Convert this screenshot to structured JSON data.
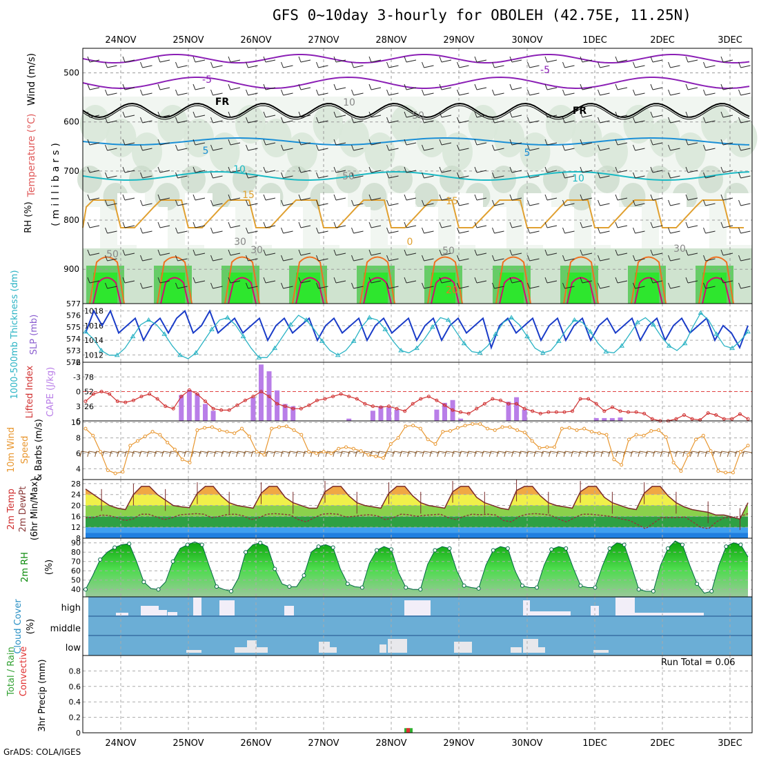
{
  "title": "GFS 0~10day 3-hourly for OBOLEH (42.75E, 11.25N)",
  "credit": "GrADS: COLA/IGES",
  "chart_data": [
    {
      "id": "upper_air",
      "type": "heatmap",
      "ylabel_parts": [
        "Wind (m/s)",
        "Temperature (°C)",
        "RH (%)"
      ],
      "ylabel_units": "(millibars)",
      "yticks": [
        500,
        600,
        700,
        800,
        900
      ],
      "ylim": [
        970,
        450
      ],
      "contour_labels": [
        "-5",
        "-5",
        "FR",
        "FR",
        "5",
        "5",
        "10",
        "10",
        "15",
        "15",
        "10",
        "50",
        "50",
        "50",
        "50",
        "30",
        "30",
        "30",
        "0",
        "20"
      ]
    },
    {
      "id": "slp_thickness",
      "type": "line",
      "ylabel_left": "1000-500mb Thickness (dm)",
      "ylabel_right": "SLP (mb)",
      "yticks_left": [
        572,
        573,
        574,
        575,
        576,
        577
      ],
      "yticks_right": [
        1012,
        1014,
        1016,
        1018
      ],
      "ylim_left": [
        572,
        577
      ],
      "ylim_right": [
        1011,
        1019
      ],
      "series": [
        {
          "axis": "right",
          "color": "#1a3cc8",
          "values": [
            1015,
            1018,
            1016,
            1018,
            1015,
            1016,
            1017,
            1014,
            1016,
            1017,
            1015,
            1017,
            1018,
            1015,
            1016,
            1018,
            1015,
            1016,
            1017,
            1015,
            1016,
            1017,
            1014,
            1016,
            1017,
            1015,
            1016,
            1017,
            1014,
            1016,
            1017,
            1015,
            1016,
            1017,
            1014,
            1016,
            1017,
            1015,
            1016,
            1017,
            1014,
            1016,
            1017,
            1014,
            1016,
            1017,
            1015,
            1016,
            1017,
            1013,
            1016,
            1017,
            1015,
            1016,
            1017,
            1014,
            1016,
            1017,
            1014,
            1016,
            1017,
            1014,
            1016,
            1017,
            1015,
            1016,
            1017,
            1014,
            1016,
            1017,
            1014,
            1016,
            1017,
            1015,
            1016,
            1017,
            1014,
            1016,
            1015,
            1013,
            1016
          ]
        },
        {
          "axis": "left",
          "color": "#2ab3c4",
          "values": [
            574.6,
            574,
            573,
            572.6,
            572.6,
            573.2,
            574.2,
            575.2,
            575.6,
            575.2,
            574.4,
            573.4,
            572.6,
            572.3,
            572.8,
            573.8,
            574.8,
            575.6,
            575.8,
            575.2,
            574.2,
            573.2,
            572.4,
            572.4,
            573.2,
            574.2,
            575.2,
            576,
            575.6,
            574.8,
            573.8,
            573,
            572.6,
            573,
            573.8,
            575,
            575.8,
            575.6,
            574.8,
            573.8,
            573,
            572.8,
            573.2,
            574,
            575,
            575.8,
            575.6,
            574.6,
            573.6,
            572.9,
            572.8,
            573.4,
            574.4,
            575.4,
            575.8,
            575.2,
            574.2,
            573.2,
            572.8,
            573,
            573.8,
            574.8,
            575.6,
            575.4,
            574.6,
            573.6,
            572.9,
            572.8,
            573.4,
            574.4,
            575.4,
            575.8,
            575.2,
            574.2,
            573.4,
            573,
            573.6,
            575,
            576.2,
            575.6,
            574.4,
            573.4,
            573.2,
            573.8,
            574.6
          ]
        }
      ]
    },
    {
      "id": "cape_li",
      "type": "bar",
      "ylabel_left": "Lifted Index",
      "ylabel_right": "CAPE (J/kg)",
      "yticks_left": [
        -6,
        -3,
        0,
        3,
        6
      ],
      "yticks_right": [
        26,
        52,
        78
      ],
      "ylim_left": [
        6,
        -6
      ],
      "ylim_right": [
        0,
        104
      ],
      "cape": [
        0,
        0,
        0,
        0,
        0,
        0,
        0,
        0,
        0,
        0,
        0,
        0,
        46,
        55,
        48,
        30,
        18,
        0,
        0,
        0,
        0,
        42,
        100,
        88,
        54,
        30,
        26,
        0,
        0,
        0,
        0,
        0,
        0,
        4,
        0,
        0,
        18,
        26,
        24,
        20,
        0,
        0,
        0,
        0,
        20,
        32,
        37,
        4,
        0,
        0,
        0,
        0,
        0,
        34,
        42,
        20,
        0,
        0,
        0,
        0,
        0,
        0,
        0,
        0,
        5,
        5,
        5,
        6,
        0,
        0,
        0,
        0,
        0,
        0,
        0,
        0,
        0,
        0,
        0,
        0,
        0,
        0,
        0,
        0
      ],
      "li": [
        2,
        0.5,
        0,
        0.5,
        2,
        2.2,
        1.8,
        1,
        0.5,
        1.5,
        3,
        3.5,
        1,
        -0.3,
        0.5,
        2,
        3.5,
        3.8,
        3.8,
        2.8,
        1.8,
        1,
        0,
        1,
        2.5,
        3,
        3.5,
        3.5,
        2.8,
        1.8,
        1.5,
        1,
        0.5,
        1,
        1.5,
        2.5,
        3,
        3.2,
        3,
        3.5,
        4,
        2.5,
        1.5,
        1,
        1.8,
        2.8,
        3.8,
        4.2,
        4.5,
        3.5,
        2.5,
        1.5,
        1.8,
        2.5,
        2.5,
        3.5,
        4,
        4.5,
        4.2,
        4.2,
        4.2,
        4,
        1.5,
        1.5,
        2.5,
        4,
        3.2,
        4,
        4.2,
        4.2,
        4.5,
        5.6,
        6,
        6,
        5.6,
        4.8,
        5.6,
        5.8,
        4.4,
        4.8,
        5.6,
        5.6,
        4.6,
        5.6
      ]
    },
    {
      "id": "wind10m",
      "type": "line",
      "ylabel": "10m Wind Speed & Barbs (m/s)",
      "yticks": [
        4,
        6,
        8,
        10
      ],
      "ylim": [
        2.6,
        10.2
      ],
      "values": [
        9.2,
        8.3,
        6.2,
        3.8,
        3.4,
        3.6,
        7,
        7.6,
        8.2,
        8.8,
        8.4,
        7.4,
        6.5,
        5.2,
        4.8,
        9,
        9.3,
        9.4,
        9,
        8.8,
        8.6,
        9.2,
        8.2,
        6.2,
        5.8,
        9.2,
        9.4,
        9.5,
        9,
        8.4,
        6.2,
        6,
        6.2,
        6,
        6.6,
        6.8,
        6.6,
        6.3,
        5.8,
        5.6,
        5.4,
        7.2,
        8,
        9.5,
        9.6,
        9.2,
        7.8,
        7.2,
        8.8,
        8.9,
        9.3,
        9.6,
        9.8,
        9.8,
        9.2,
        9,
        9.4,
        9.4,
        9,
        8.7,
        7.6,
        6.7,
        6.8,
        6.8,
        9.2,
        9.3,
        9,
        9.2,
        8.8,
        8.6,
        8.4,
        5.2,
        4.5,
        7.8,
        8.4,
        8.3,
        8.9,
        9,
        8.1,
        4.8,
        3.7,
        5.8,
        7.8,
        8.3,
        6.3,
        3.7,
        3.5,
        3.5,
        6.2,
        7
      ]
    },
    {
      "id": "temp2m",
      "type": "area",
      "ylabel": "2m Temp 2m DewPt (6hr Min/Max) (°C)",
      "yticks": [
        8,
        12,
        16,
        20,
        24,
        28
      ],
      "ylim": [
        8,
        29.5
      ],
      "temp": [
        26,
        24,
        22,
        20,
        19,
        18.5,
        24,
        27,
        27,
        24,
        22,
        20,
        19.5,
        19.2,
        24.5,
        27,
        27,
        23.5,
        21,
        20,
        19.5,
        19,
        24.5,
        27,
        27,
        23,
        21,
        20,
        19,
        19,
        25,
        27,
        27,
        23.5,
        21,
        20,
        19.5,
        19,
        24.5,
        27,
        27,
        23.5,
        21,
        20,
        19.5,
        19,
        25,
        27,
        27,
        23,
        21,
        20,
        19,
        18.5,
        25.5,
        27,
        27,
        23.5,
        21,
        20,
        19.5,
        19,
        25,
        27,
        27,
        23,
        21,
        20,
        19,
        18.5,
        24.5,
        27,
        27,
        23.5,
        21,
        19.5,
        18.5,
        18,
        17.5,
        16.5,
        16.5,
        15.8,
        15,
        21
      ],
      "dewpt": [
        15.5,
        15.5,
        16.5,
        16.3,
        15.5,
        14.5,
        15,
        16.8,
        16.8,
        15.8,
        14.8,
        15.5,
        16.6,
        16.8,
        17,
        16.8,
        15.5,
        16,
        16.7,
        16.8,
        16.2,
        14.8,
        15.5,
        16.8,
        17,
        16.8,
        16.5,
        14.8,
        14,
        15.5,
        16.8,
        17,
        16.8,
        15.8,
        16,
        16.4,
        16.6,
        16.2,
        14.8,
        15.5,
        16.8,
        16.6,
        16,
        16.4,
        16.6,
        16.8,
        15.5,
        14.8,
        16,
        16.8,
        16.6,
        16.8,
        16.5,
        14.5,
        14,
        16,
        16.8,
        17,
        16.8,
        16.4,
        15,
        14,
        15.5,
        16.8,
        16.8,
        16.5,
        16.2,
        15.8,
        15,
        14.5,
        13,
        11.5,
        13.5,
        15.5,
        15.5,
        15.5,
        15.8,
        14,
        12,
        11.5,
        14,
        15.5,
        15.5,
        16,
        17
      ],
      "fill_bands": [
        {
          "range": [
            8,
            10
          ],
          "color": "#1f7fe0"
        },
        {
          "range": [
            10,
            12
          ],
          "color": "#3fa0f0"
        },
        {
          "range": [
            12,
            16
          ],
          "color": "#2ea043"
        },
        {
          "range": [
            16,
            20
          ],
          "color": "#8ad14c"
        },
        {
          "range": [
            20,
            24
          ],
          "color": "#f0f04a"
        },
        {
          "range": [
            24,
            28
          ],
          "color": "#f0a844"
        },
        {
          "range": [
            28,
            32
          ],
          "color": "#e87830"
        }
      ]
    },
    {
      "id": "rh2m",
      "type": "area",
      "ylabel": "2m RH (%)",
      "yticks": [
        40,
        50,
        60,
        70,
        80,
        90
      ],
      "ylim": [
        32,
        95
      ],
      "values": [
        40,
        55,
        72,
        80,
        85,
        88,
        89,
        70,
        48,
        41,
        40,
        48,
        70,
        84,
        88,
        91,
        88,
        65,
        43,
        40,
        38,
        52,
        80,
        88,
        90,
        86,
        62,
        46,
        43,
        43,
        55,
        80,
        86,
        88,
        85,
        62,
        46,
        43,
        42,
        68,
        82,
        86,
        83,
        58,
        42,
        40,
        40,
        67,
        82,
        86,
        84,
        60,
        44,
        42,
        41,
        66,
        82,
        86,
        84,
        60,
        44,
        42,
        42,
        66,
        83,
        86,
        84,
        63,
        44,
        42,
        42,
        65,
        84,
        90,
        88,
        65,
        40,
        38,
        38,
        66,
        84,
        92,
        88,
        66,
        46,
        36,
        38,
        66,
        86,
        90,
        88,
        75
      ]
    },
    {
      "id": "cloud",
      "type": "bar",
      "ylabel": "Cloud Cover (%)",
      "categories": [
        "high",
        "middle",
        "low"
      ],
      "background_color": "#6baed6"
    },
    {
      "id": "precip",
      "type": "bar",
      "ylabel_parts": [
        "Total / Rain",
        "Convective"
      ],
      "ylabel": "3hr Precip (mm)",
      "yticks": [
        0,
        0.2,
        0.4,
        0.6,
        0.8
      ],
      "ylim": [
        0,
        1
      ],
      "run_total": "Run Total = 0.06",
      "bars": [
        {
          "index": 29,
          "total": 0.06,
          "convective": 0.06
        }
      ]
    }
  ],
  "x_axis": {
    "labels": [
      "24NOV",
      "25NOV",
      "26NOV",
      "27NOV",
      "28NOV",
      "29NOV",
      "30NOV",
      "1DEC",
      "2DEC",
      "3DEC"
    ]
  }
}
